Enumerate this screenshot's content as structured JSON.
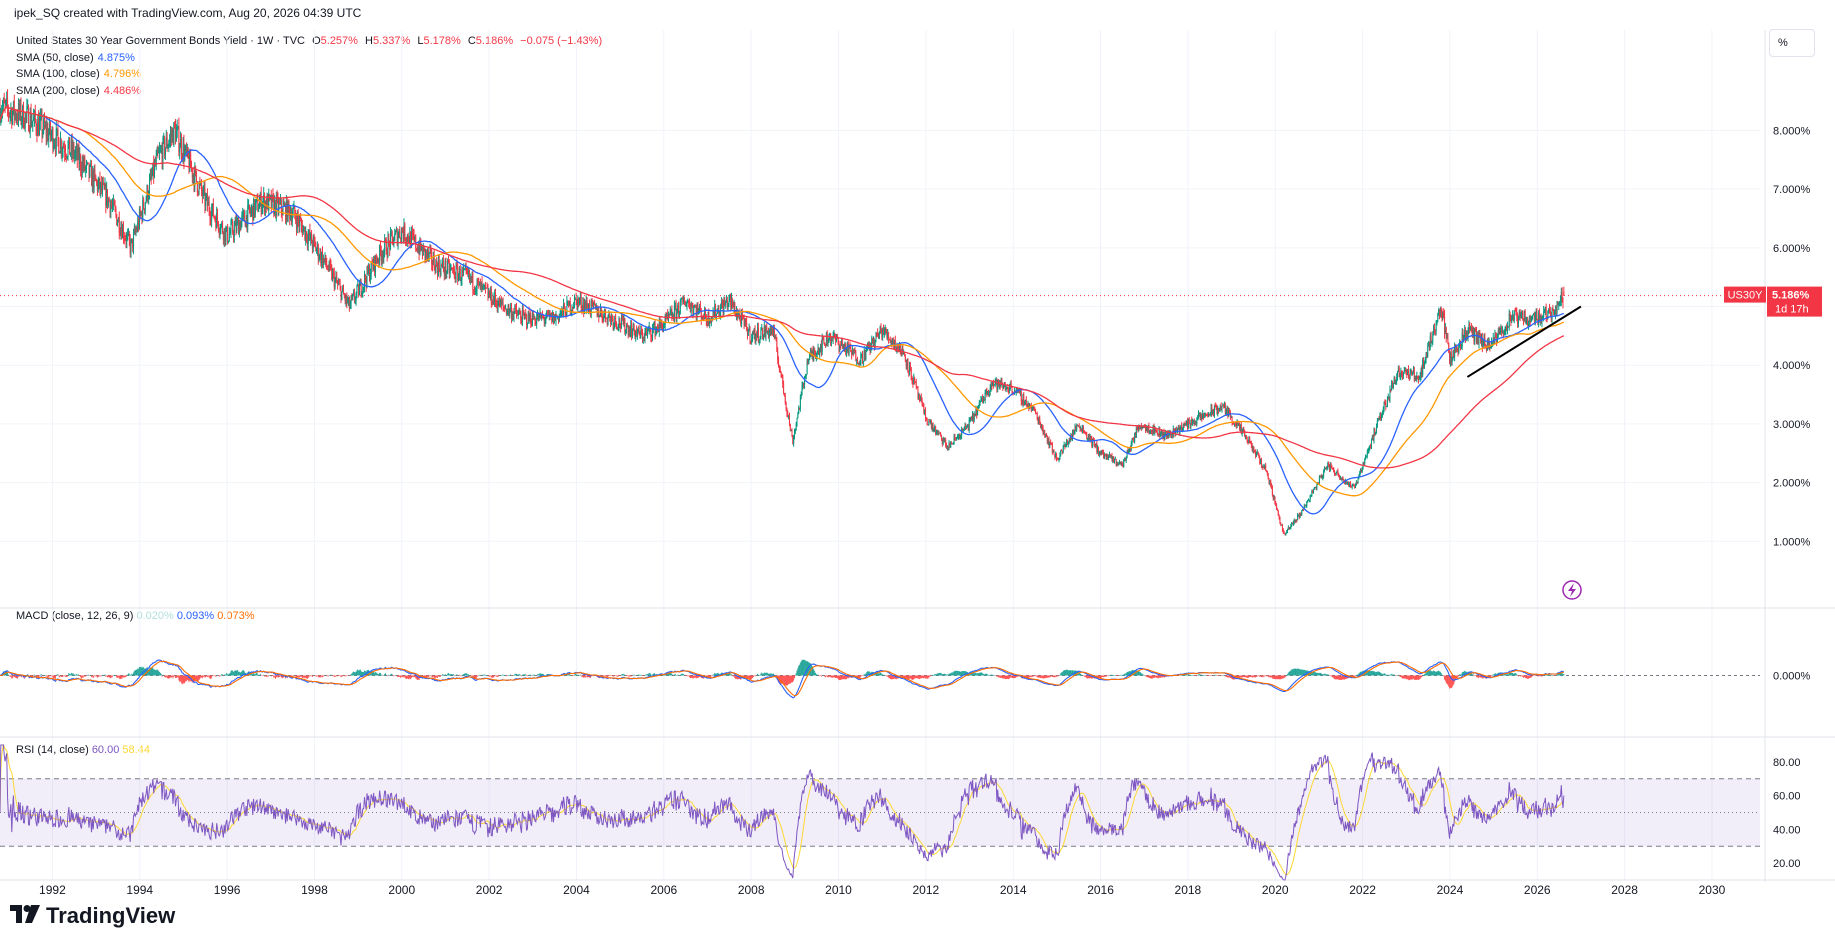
{
  "header": {
    "text": "ipek_SQ created with TradingView.com, Aug 20, 2026 04:39 UTC"
  },
  "legend": {
    "symbol": "United States 30 Year Government Bonds Yield · 1W · TVC",
    "open_label": "O",
    "open": "5.257%",
    "high_label": "H",
    "high": "5.337%",
    "low_label": "L",
    "low": "5.178%",
    "close_label": "C",
    "close": "5.186%",
    "change": "−0.075 (−1.43%)",
    "sma50_label": "SMA (50, close)",
    "sma50_value": "4.875%",
    "sma100_label": "SMA (100, close)",
    "sma100_value": "4.796%",
    "sma200_label": "SMA (200, close)",
    "sma200_value": "4.486%"
  },
  "macd_legend": {
    "label": "MACD (close, 12, 26, 9)",
    "hist": "0.020%",
    "macd": "0.093%",
    "signal": "0.073%"
  },
  "rsi_legend": {
    "label": "RSI (14, close)",
    "rsi": "60.00",
    "rsi_ma": "58.44"
  },
  "scale_button": "%",
  "price_tag": {
    "symbol": "US30Y",
    "value": "5.186%",
    "countdown": "1d 17h"
  },
  "colors": {
    "up": "#089981",
    "down": "#f23645",
    "sma50": "#2962ff",
    "sma100": "#ff9800",
    "sma200": "#f23645",
    "macd": "#2962ff",
    "signal": "#ff6d00",
    "rsi": "#7e57c2",
    "rsi_ma": "#fdd835",
    "hist_pos": "#26a69a",
    "hist_neg": "#ff5252"
  },
  "flash_icon": "lightning-icon",
  "footer": {
    "brand": "TradingView",
    "logo_icon": "tradingview-logo-icon"
  },
  "chart_data": [
    {
      "type": "candlestick",
      "title": "United States 30 Year Government Bonds Yield",
      "interval": "1W",
      "y_unit": "%",
      "y_ticks": [
        "8.000%",
        "7.000%",
        "6.000%",
        "5.000%",
        "4.000%",
        "3.000%",
        "2.000%",
        "1.000%"
      ],
      "x_ticks": [
        "1992",
        "1994",
        "1996",
        "1998",
        "2000",
        "2002",
        "2004",
        "2006",
        "2008",
        "2010",
        "2012",
        "2014",
        "2016",
        "2018",
        "2020",
        "2022",
        "2024",
        "2026",
        "2028",
        "2030"
      ],
      "xlim": [
        1990.8,
        2031.1
      ],
      "ylim": [
        0.0,
        9.2
      ],
      "series_approx": {
        "years": [
          1990.8,
          1991.5,
          1992.5,
          1993.3,
          1993.8,
          1994.4,
          1994.8,
          1995.5,
          1996.0,
          1996.8,
          1997.5,
          1998.2,
          1998.8,
          1999.5,
          2000.0,
          2000.8,
          2001.5,
          2002.3,
          2002.8,
          2003.5,
          2004.0,
          2004.8,
          2005.5,
          2006.0,
          2006.5,
          2007.0,
          2007.5,
          2008.0,
          2008.5,
          2008.95,
          2009.3,
          2009.8,
          2010.5,
          2011.0,
          2011.5,
          2012.0,
          2012.5,
          2013.0,
          2013.5,
          2014.0,
          2014.5,
          2015.0,
          2015.5,
          2016.0,
          2016.5,
          2016.9,
          2017.5,
          2018.0,
          2018.8,
          2019.3,
          2019.8,
          2020.2,
          2020.6,
          2021.2,
          2021.8,
          2022.3,
          2022.8,
          2023.3,
          2023.8,
          2024.0,
          2024.4,
          2024.9,
          2025.4,
          2025.9,
          2026.3,
          2026.62
        ],
        "close": [
          8.4,
          8.2,
          7.6,
          6.8,
          6.0,
          7.5,
          8.0,
          6.8,
          6.2,
          6.8,
          6.6,
          5.8,
          5.0,
          5.9,
          6.3,
          5.7,
          5.5,
          5.0,
          4.8,
          4.8,
          5.1,
          4.8,
          4.5,
          4.7,
          5.1,
          4.8,
          5.1,
          4.5,
          4.6,
          2.7,
          4.1,
          4.5,
          4.1,
          4.6,
          4.2,
          3.1,
          2.6,
          3.0,
          3.7,
          3.6,
          3.2,
          2.4,
          3.0,
          2.5,
          2.3,
          3.0,
          2.8,
          3.0,
          3.3,
          2.8,
          2.2,
          1.1,
          1.5,
          2.3,
          1.9,
          2.9,
          3.9,
          3.8,
          5.0,
          4.1,
          4.6,
          4.3,
          4.8,
          4.8,
          4.9,
          5.186
        ]
      },
      "sma": {
        "sma50_last": 4.875,
        "sma100_last": 4.796,
        "sma200_last": 4.486
      },
      "trendline": {
        "from": [
          2024.4,
          3.8
        ],
        "to": [
          2027.0,
          5.0
        ]
      }
    },
    {
      "type": "line",
      "title": "MACD (close, 12, 26, 9)",
      "y_ticks": [
        "0.000%"
      ],
      "last": {
        "histogram": 0.02,
        "macd": 0.093,
        "signal": 0.073
      }
    },
    {
      "type": "line",
      "title": "RSI (14, close)",
      "y_ticks": [
        "80.00",
        "60.00",
        "40.00",
        "20.00"
      ],
      "ylim": [
        10,
        90
      ],
      "bands": [
        30,
        50,
        70
      ],
      "last": {
        "rsi": 60.0,
        "rsi_ma": 58.44
      }
    }
  ]
}
